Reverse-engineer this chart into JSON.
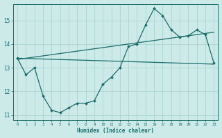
{
  "xlabel": "Humidex (Indice chaleur)",
  "bg_color": "#cceae7",
  "grid_color": "#aad4d0",
  "line_color": "#1a6b6b",
  "xlim": [
    -0.5,
    23.5
  ],
  "ylim": [
    10.8,
    15.7
  ],
  "ytick_vals": [
    11,
    12,
    13,
    14,
    15
  ],
  "line1_x": [
    0,
    1,
    2,
    3,
    4,
    5,
    6,
    7,
    8,
    9,
    10,
    11,
    12,
    13,
    14,
    15,
    16,
    17,
    18,
    19,
    20,
    21,
    22,
    23
  ],
  "line1_y": [
    13.4,
    12.7,
    13.0,
    11.8,
    11.2,
    11.1,
    11.3,
    11.5,
    11.5,
    11.6,
    12.3,
    12.6,
    13.0,
    13.9,
    14.0,
    14.8,
    15.5,
    15.2,
    14.6,
    14.3,
    14.35,
    14.6,
    14.4,
    13.2
  ],
  "line2_x": [
    0,
    23
  ],
  "line2_y": [
    13.4,
    13.15
  ],
  "line3_x": [
    0,
    23
  ],
  "line3_y": [
    13.35,
    14.5
  ]
}
